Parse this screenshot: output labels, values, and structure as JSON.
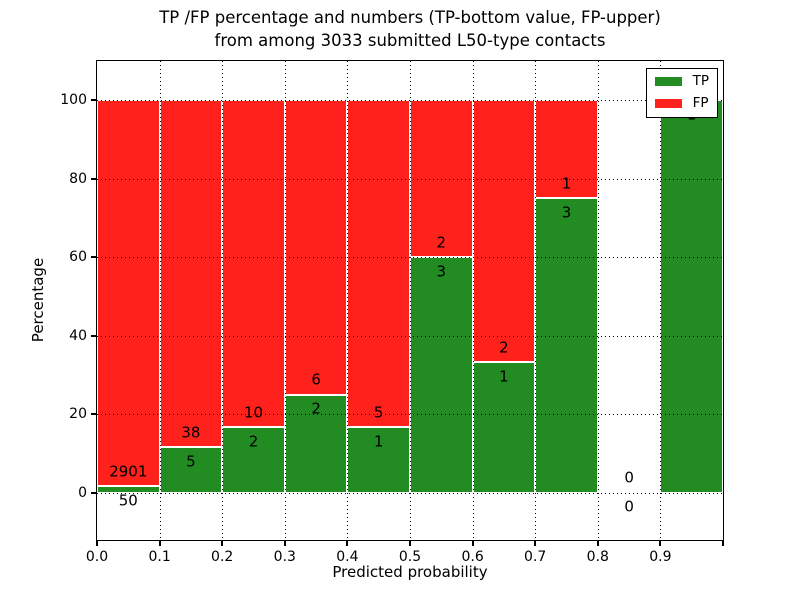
{
  "window": {
    "background": "#ffffff"
  },
  "chart_data": {
    "type": "bar",
    "subtype": "stacked-percentage-histogram",
    "title": "TP /FP percentage and numbers (TP-bottom value, FP-upper)\nfrom among 3033 submitted L50-type contacts",
    "title_line1": "TP /FP percentage and numbers (TP-bottom value, FP-upper)",
    "title_line2": "from among 3033 submitted L50-type contacts",
    "xlabel": "Predicted probability",
    "ylabel": "Percentage",
    "ylim": [
      -12,
      110
    ],
    "xlim": [
      0.0,
      1.0
    ],
    "grid": "dotted",
    "y_ticks": [
      0,
      20,
      40,
      60,
      80,
      100
    ],
    "x_ticks": [
      {
        "pos": 0.0,
        "label": "0.0"
      },
      {
        "pos": 0.1,
        "label": "0.1"
      },
      {
        "pos": 0.2,
        "label": "0.2"
      },
      {
        "pos": 0.3,
        "label": "0.3"
      },
      {
        "pos": 0.4,
        "label": "0.4"
      },
      {
        "pos": 0.5,
        "label": "0.5"
      },
      {
        "pos": 0.6,
        "label": "0.6"
      },
      {
        "pos": 0.7,
        "label": "0.7"
      },
      {
        "pos": 0.8,
        "label": "0.8"
      },
      {
        "pos": 0.9,
        "label": "0.9"
      },
      {
        "pos": 1.0,
        "label": ""
      }
    ],
    "colors": {
      "tp": "#228b22",
      "fp": "#ff221c",
      "bar_edge": "#ffffff"
    },
    "legend": {
      "position": "upper-right",
      "entries": [
        {
          "label": "TP",
          "color": "#228b22"
        },
        {
          "label": "FP",
          "color": "#ff221c"
        }
      ]
    },
    "bins": [
      {
        "x0": 0.0,
        "x1": 0.1,
        "tp": 50,
        "fp": 2901,
        "tp_pct": 1.7,
        "bar": true
      },
      {
        "x0": 0.1,
        "x1": 0.2,
        "tp": 5,
        "fp": 38,
        "tp_pct": 11.6,
        "bar": true
      },
      {
        "x0": 0.2,
        "x1": 0.3,
        "tp": 2,
        "fp": 10,
        "tp_pct": 16.7,
        "bar": true
      },
      {
        "x0": 0.3,
        "x1": 0.4,
        "tp": 2,
        "fp": 6,
        "tp_pct": 25.0,
        "bar": true
      },
      {
        "x0": 0.4,
        "x1": 0.5,
        "tp": 1,
        "fp": 5,
        "tp_pct": 16.7,
        "bar": true
      },
      {
        "x0": 0.5,
        "x1": 0.6,
        "tp": 3,
        "fp": 2,
        "tp_pct": 60.0,
        "bar": true
      },
      {
        "x0": 0.6,
        "x1": 0.7,
        "tp": 1,
        "fp": 2,
        "tp_pct": 33.3,
        "bar": true
      },
      {
        "x0": 0.7,
        "x1": 0.8,
        "tp": 3,
        "fp": 1,
        "tp_pct": 75.0,
        "bar": true
      },
      {
        "x0": 0.8,
        "x1": 0.9,
        "tp": 0,
        "fp": 0,
        "tp_pct": 0.0,
        "bar": false
      },
      {
        "x0": 0.9,
        "x1": 1.0,
        "tp": 1,
        "fp": null,
        "tp_pct": 100.0,
        "bar": true
      }
    ]
  }
}
